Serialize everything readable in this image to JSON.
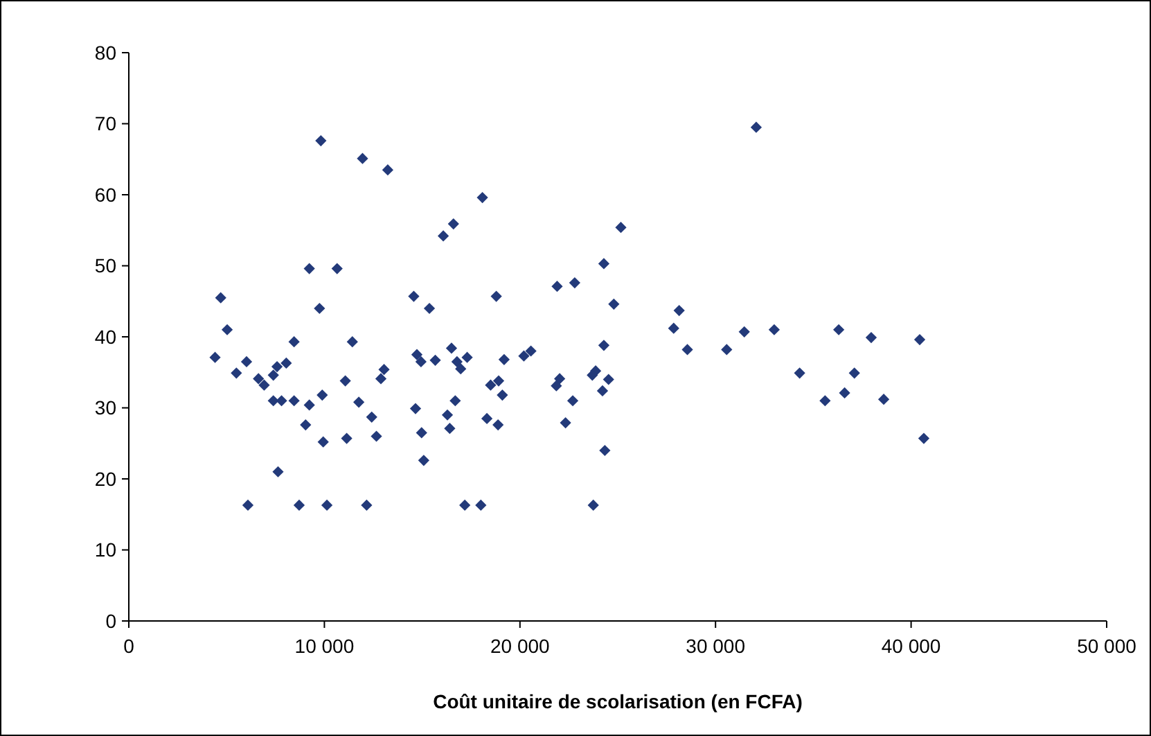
{
  "chart_data": {
    "type": "scatter",
    "xlabel": "Coût unitaire de scolarisation (en FCFA)",
    "marker": "diamond",
    "xlim": [
      0,
      50000
    ],
    "ylim": [
      0,
      80
    ],
    "xticks": [
      0,
      {
        "value": 10000,
        "label": "10 000"
      },
      {
        "value": 20000,
        "label": "20 000"
      },
      {
        "value": 30000,
        "label": "30 000"
      },
      {
        "value": 40000,
        "label": "40 000"
      },
      {
        "value": 50000,
        "label": "50 000"
      }
    ],
    "yticks": [
      0,
      10,
      20,
      30,
      40,
      50,
      60,
      70,
      80
    ],
    "series": [
      {
        "color": "#233a7a",
        "x": [
          9820,
          11950,
          9230,
          10650,
          4700,
          9750,
          5030,
          8450,
          11430,
          4410,
          6020,
          5500,
          7580,
          8050,
          7390,
          6630,
          6920,
          11070,
          7390,
          7810,
          8450,
          9230,
          9890,
          11760,
          12420,
          9040,
          9940,
          11140,
          7630,
          6090,
          8710,
          10130,
          12160,
          13240,
          18080,
          16600,
          16080,
          24290,
          21900,
          22800,
          14570,
          15370,
          18790,
          24290,
          14730,
          14940,
          15670,
          16500,
          16780,
          17300,
          16970,
          19190,
          20200,
          20560,
          13050,
          12890,
          18500,
          18910,
          19100,
          22030,
          21860,
          23870,
          23700,
          24220,
          22700,
          12660,
          14660,
          16690,
          16290,
          16410,
          14970,
          18310,
          18880,
          22330,
          15080,
          24340,
          17180,
          18000,
          23750,
          32080,
          25160,
          24800,
          24530,
          28140,
          27860,
          28560,
          30570,
          31470,
          33000,
          34300,
          35600,
          36600,
          37100,
          36300,
          37960,
          40440,
          38600,
          40650
        ],
        "values": [
          67.6,
          65.1,
          49.6,
          49.6,
          45.5,
          44.0,
          41.0,
          39.3,
          39.3,
          37.1,
          36.5,
          34.9,
          35.8,
          36.3,
          34.6,
          34.1,
          33.2,
          33.8,
          31.0,
          31.0,
          31.0,
          30.4,
          31.8,
          30.8,
          28.7,
          27.6,
          25.2,
          25.7,
          21.0,
          16.3,
          16.3,
          16.3,
          16.3,
          63.5,
          59.6,
          55.9,
          54.2,
          50.3,
          47.1,
          47.6,
          45.7,
          44.0,
          45.7,
          38.8,
          37.5,
          36.5,
          36.7,
          38.4,
          36.5,
          37.1,
          35.5,
          36.8,
          37.3,
          38.0,
          35.4,
          34.1,
          33.2,
          33.8,
          31.8,
          34.1,
          33.1,
          35.2,
          34.6,
          32.4,
          31.0,
          26.0,
          29.9,
          31.0,
          29.0,
          27.1,
          26.5,
          28.5,
          27.6,
          27.9,
          22.6,
          24.0,
          16.3,
          16.3,
          16.3,
          69.5,
          55.4,
          44.6,
          34.0,
          43.7,
          41.2,
          38.2,
          38.2,
          40.7,
          41.0,
          34.9,
          31.0,
          32.1,
          34.9,
          41.0,
          39.9,
          39.6,
          31.2,
          25.7
        ]
      }
    ]
  }
}
